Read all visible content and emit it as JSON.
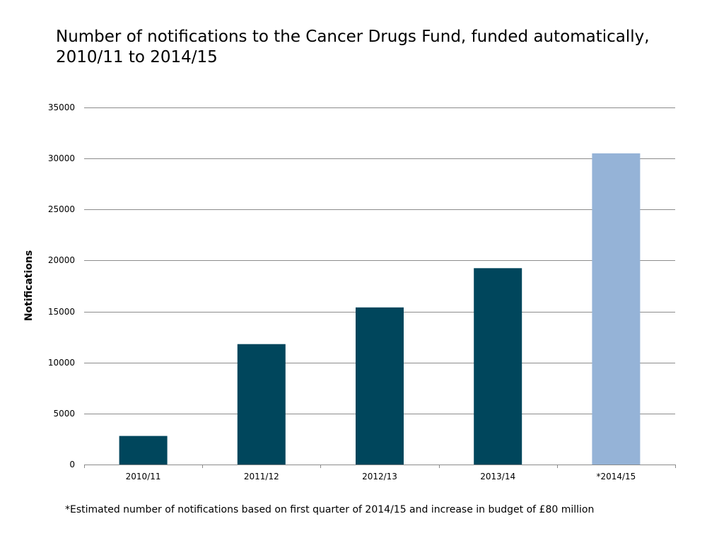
{
  "chart_data": {
    "type": "bar",
    "title_lines": [
      "Number of notifications to the Cancer Drugs Fund, funded automatically,",
      "2010/11 to 2014/15"
    ],
    "xlabel": "",
    "ylabel": "Notifications",
    "categories": [
      "2010/11",
      "2011/12",
      "2012/13",
      "2013/14",
      "*2014/15"
    ],
    "values": [
      2800,
      11800,
      15400,
      19250,
      30500
    ],
    "estimated": [
      false,
      false,
      false,
      false,
      true
    ],
    "ylim": [
      0,
      35000
    ],
    "yticks": [
      0,
      5000,
      10000,
      15000,
      20000,
      25000,
      30000,
      35000
    ],
    "ytick_labels": [
      "0",
      "5000",
      "10000",
      "15000",
      "20000",
      "25000",
      "30000",
      "35000"
    ],
    "grid": true,
    "legend": "none",
    "colors": {
      "actual": "#00465c",
      "estimated": "#95b3d7",
      "grid": "#8c8c8c",
      "axis": "#8c8c8c"
    },
    "footnote": "*Estimated number of notifications based on first quarter of 2014/15 and increase in budget of £80 million"
  }
}
